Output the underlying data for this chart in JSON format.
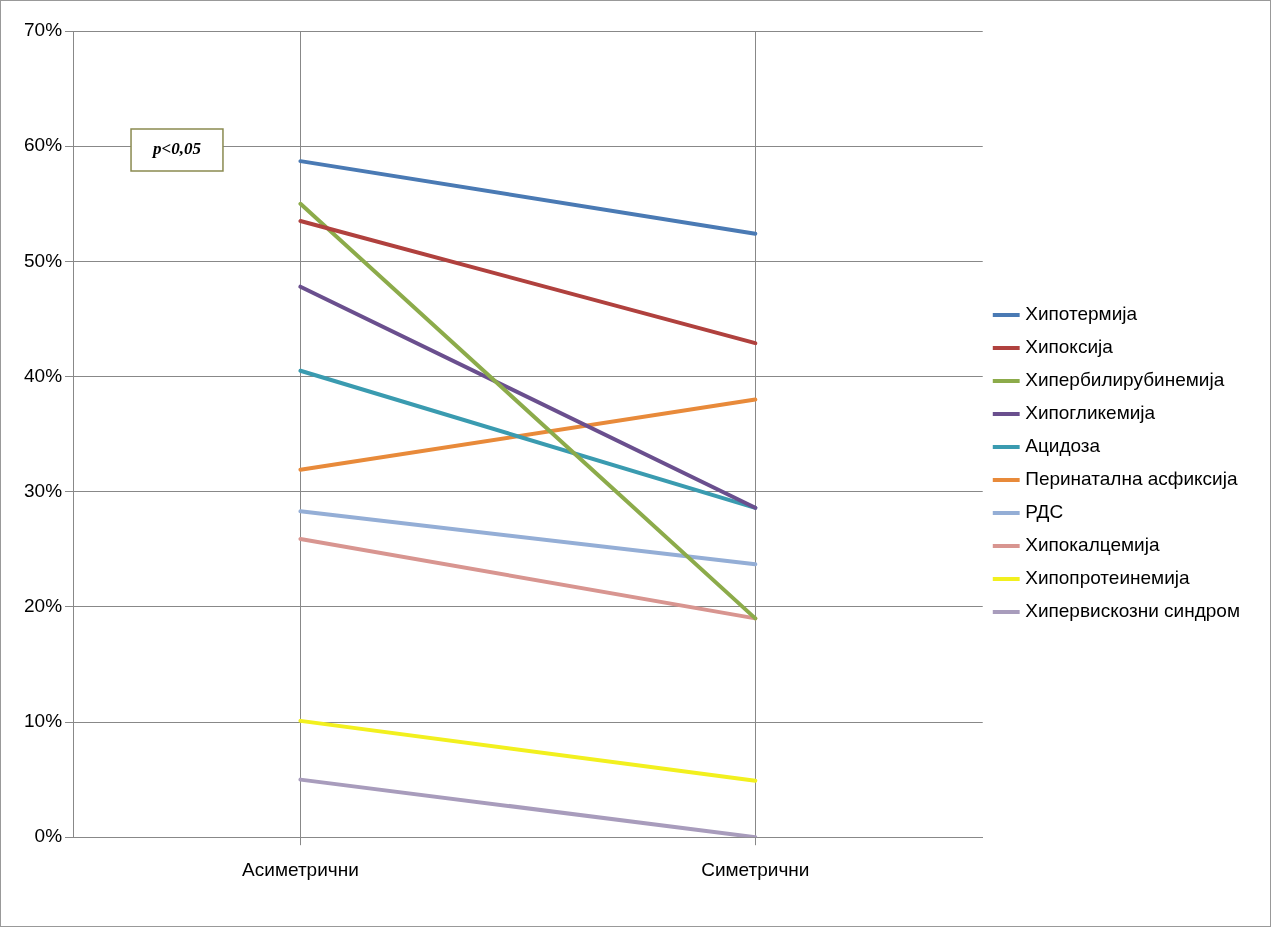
{
  "chart_data": {
    "type": "line",
    "categories": [
      "Асиметрични",
      "Симетрични"
    ],
    "series": [
      {
        "name": "Хипотермија",
        "color": "#4a7ab4",
        "values": [
          58.7,
          52.4
        ]
      },
      {
        "name": "Хипоксија",
        "color": "#b0413e",
        "values": [
          53.5,
          42.9
        ]
      },
      {
        "name": "Хипербилирубинемија",
        "color": "#8cab4a",
        "values": [
          55.0,
          19.0
        ]
      },
      {
        "name": "Хипогликемија",
        "color": "#6a4f8e",
        "values": [
          47.8,
          28.6
        ]
      },
      {
        "name": "Ацидоза",
        "color": "#3a9bb0",
        "values": [
          40.5,
          28.6
        ]
      },
      {
        "name": "Перинатална асфиксија",
        "color": "#e88a3a",
        "values": [
          31.9,
          38.0
        ]
      },
      {
        "name": "РДС",
        "color": "#94aed6",
        "values": [
          28.3,
          23.7
        ]
      },
      {
        "name": "Хипокалцемија",
        "color": "#d89590",
        "values": [
          25.9,
          19.0
        ]
      },
      {
        "name": "Хипопротеинемија",
        "color": "#f2f01e",
        "values": [
          10.1,
          4.9
        ]
      },
      {
        "name": "Хипервискозни синдром",
        "color": "#a89cbc",
        "values": [
          5.0,
          0
        ]
      }
    ],
    "ylim": [
      0,
      70
    ],
    "yticks": [
      {
        "value": 0,
        "label": "0%"
      },
      {
        "value": 10,
        "label": "10%"
      },
      {
        "value": 20,
        "label": "20%"
      },
      {
        "value": 30,
        "label": "30%"
      },
      {
        "value": 40,
        "label": "40%"
      },
      {
        "value": 50,
        "label": "50%"
      },
      {
        "value": 60,
        "label": "60%"
      },
      {
        "value": 70,
        "label": "70%"
      }
    ],
    "grid": true,
    "legend": "right",
    "marker": "none",
    "line_style": "solid",
    "annotations": [
      "p<0,05"
    ]
  }
}
